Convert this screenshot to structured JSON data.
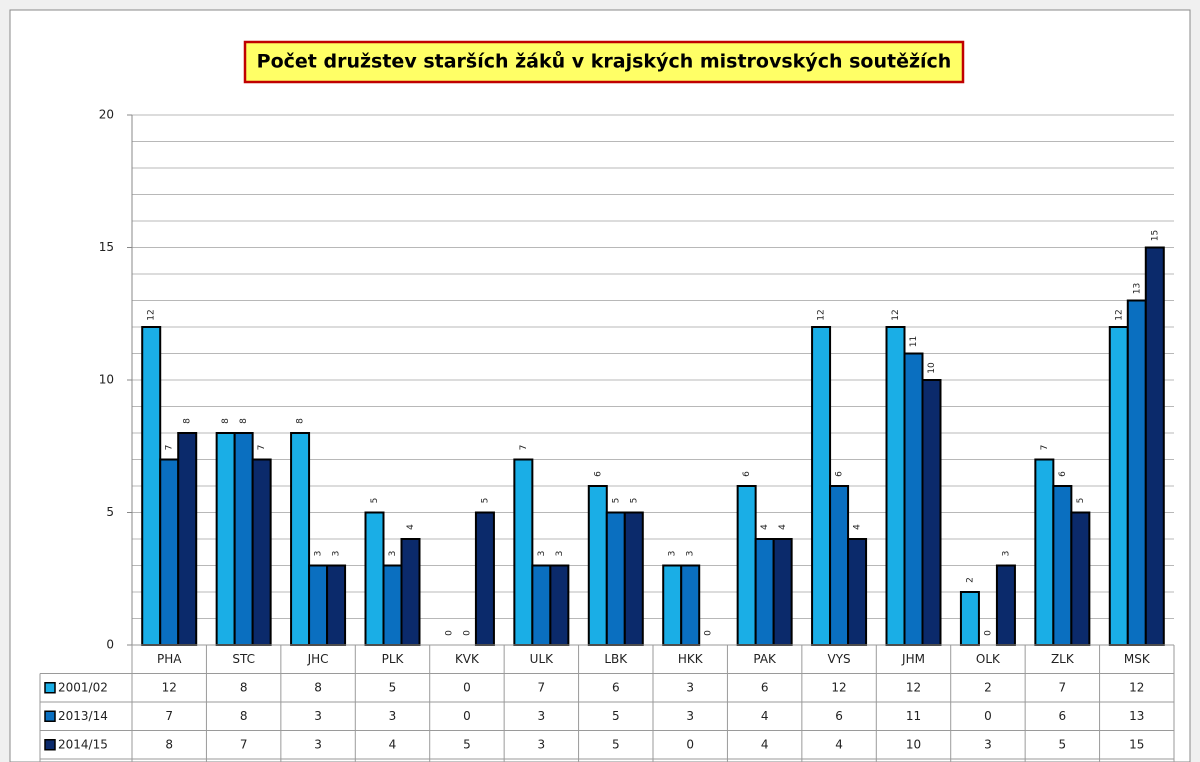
{
  "chart_data": {
    "type": "bar",
    "title": "Počet družstev starších žáků v krajských mistrovských soutěžích",
    "categories": [
      "PHA",
      "STC",
      "JHC",
      "PLK",
      "KVK",
      "ULK",
      "LBK",
      "HKK",
      "PAK",
      "VYS",
      "JHM",
      "OLK",
      "ZLK",
      "MSK"
    ],
    "series": [
      {
        "name": "2001/02",
        "color": "#1aaee6",
        "values": [
          12,
          8,
          8,
          5,
          0,
          7,
          6,
          3,
          6,
          12,
          12,
          2,
          7,
          12
        ]
      },
      {
        "name": "2013/14",
        "color": "#0a6fc0",
        "values": [
          7,
          8,
          3,
          3,
          0,
          3,
          5,
          3,
          4,
          6,
          11,
          0,
          6,
          13
        ]
      },
      {
        "name": "2014/15",
        "color": "#0b2a6b",
        "values": [
          8,
          7,
          3,
          4,
          5,
          3,
          5,
          0,
          4,
          4,
          10,
          3,
          5,
          15
        ]
      }
    ],
    "ylim": [
      0,
      20
    ],
    "yticks": [
      0,
      5,
      10,
      15,
      20
    ],
    "grid": true,
    "minor_grid_step": 1,
    "data_table": true
  }
}
